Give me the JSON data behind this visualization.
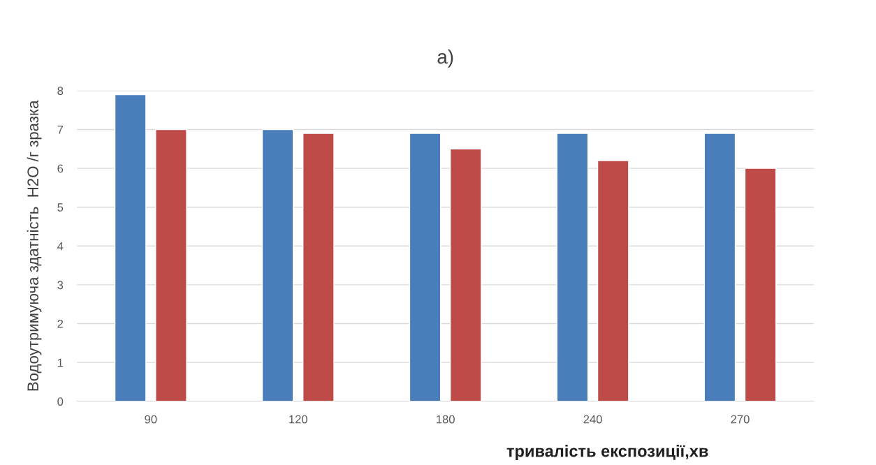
{
  "chart_data": {
    "type": "bar",
    "title": "a)",
    "xlabel": "тривалість експозиції,хв",
    "ylabel": "Водоутримуюча здатність  H2O /г зразка",
    "categories": [
      "90",
      "120",
      "180",
      "240",
      "270"
    ],
    "series": [
      {
        "color": "#4a7ebb",
        "values": [
          7.9,
          7.0,
          6.9,
          6.9,
          6.9
        ]
      },
      {
        "color": "#be4b48",
        "values": [
          7.0,
          6.9,
          6.5,
          6.2,
          6.0
        ]
      }
    ],
    "ylim": [
      0,
      8
    ],
    "yticks": [
      0,
      1,
      2,
      3,
      4,
      5,
      6,
      7,
      8
    ],
    "grid": "y"
  }
}
